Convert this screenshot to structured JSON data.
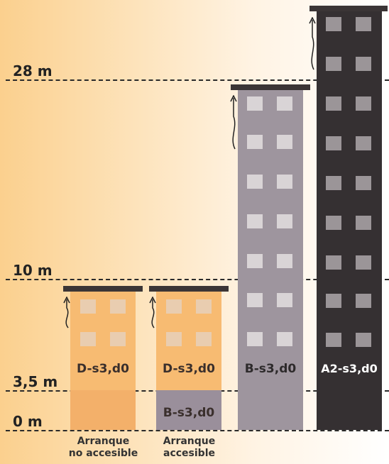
{
  "levels": [
    {
      "label": "28 m"
    },
    {
      "label": "10 m"
    },
    {
      "label": "3,5 m"
    },
    {
      "label": "0 m"
    }
  ],
  "buildings": [
    {
      "rating_upper": "D-s3,d0",
      "rating_lower": "",
      "caption_line1": "Arranque",
      "caption_line2": "no accesible"
    },
    {
      "rating_upper": "D-s3,d0",
      "rating_lower": "B-s3,d0",
      "caption_line1": "Arranque",
      "caption_line2": "accesible"
    },
    {
      "rating_upper": "B-s3,d0",
      "rating_lower": "",
      "caption_line1": "",
      "caption_line2": ""
    },
    {
      "rating_upper": "A2-s3,d0",
      "rating_lower": "",
      "caption_line1": "",
      "caption_line2": ""
    }
  ],
  "colors": {
    "orange_building": "#f7bb72",
    "orange_base": "#f3b06a",
    "purple_base": "#9a8f9b",
    "grey_building": "#9e959e",
    "dark_building": "#353032",
    "window_light": "#d9d4d6"
  }
}
